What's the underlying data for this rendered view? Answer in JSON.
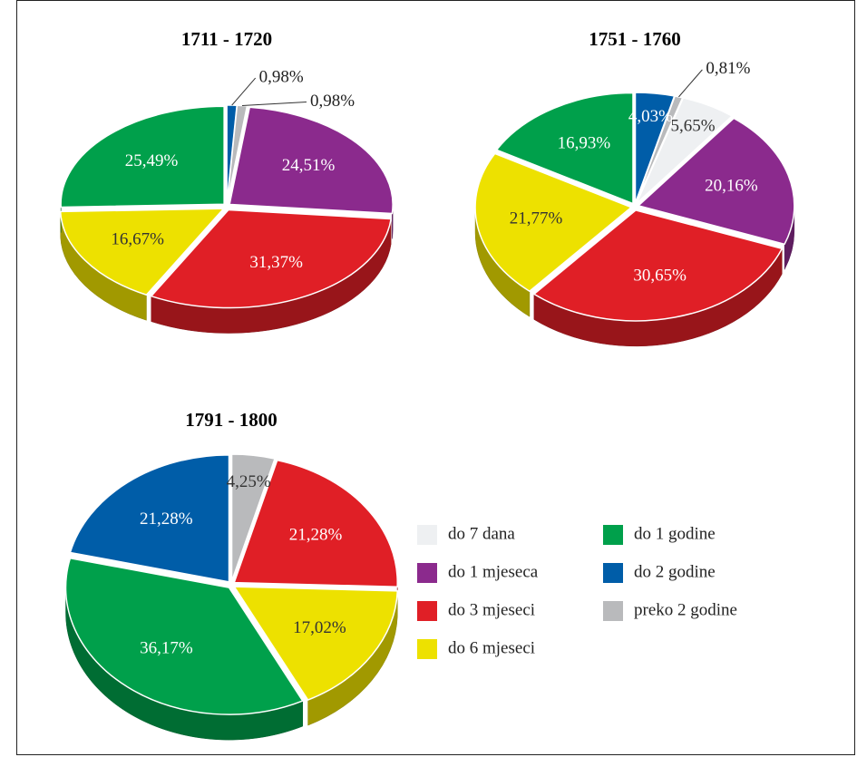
{
  "chart_data": [
    {
      "type": "pie",
      "title": "1711 - 1720",
      "categories": [
        "do 2 godine",
        "preko 2 godine",
        "do 1 mjeseca",
        "do 3 mjeseci",
        "do 6 mjeseci",
        "do 1 godine"
      ],
      "values": [
        0.98,
        0.98,
        24.51,
        31.37,
        16.67,
        25.49
      ],
      "value_labels": [
        "0,98%",
        "0,98%",
        "24,51%",
        "31,37%",
        "16,67%",
        "25,49%"
      ],
      "colors": [
        "#005da8",
        "#b9babc",
        "#8b2a8d",
        "#e01f26",
        "#ede100",
        "#00a04b"
      ]
    },
    {
      "type": "pie",
      "title": "1751 - 1760",
      "categories": [
        "do 2 godine",
        "preko 2 godine",
        "do 7 dana",
        "do 1 mjeseca",
        "do 3 mjeseci",
        "do 6 mjeseci",
        "do 1 godine"
      ],
      "values": [
        4.03,
        0.81,
        5.65,
        20.16,
        30.65,
        21.77,
        16.93
      ],
      "value_labels": [
        "4,03%",
        "0,81%",
        "5,65%",
        "20,16%",
        "30,65%",
        "21,77%",
        "16,93%"
      ],
      "colors": [
        "#005da8",
        "#b9babc",
        "#eef0f2",
        "#8b2a8d",
        "#e01f26",
        "#ede100",
        "#00a04b"
      ]
    },
    {
      "type": "pie",
      "title": "1791 - 1800",
      "categories": [
        "preko 2 godine",
        "do 3 mjeseci",
        "do 6 mjeseci",
        "do 1 godine",
        "do 2 godine"
      ],
      "values": [
        4.25,
        21.28,
        17.02,
        36.17,
        21.28
      ],
      "value_labels": [
        "4,25%",
        "21,28%",
        "17,02%",
        "36,17%",
        "21,28%"
      ],
      "colors": [
        "#b9babc",
        "#e01f26",
        "#ede100",
        "#00a04b",
        "#005da8"
      ]
    }
  ],
  "legend": [
    {
      "label": "do 7 dana",
      "color": "#eef0f2"
    },
    {
      "label": "do 1 godine",
      "color": "#00a04b"
    },
    {
      "label": "do 1 mjeseca",
      "color": "#8b2a8d"
    },
    {
      "label": "do 2 godine",
      "color": "#005da8"
    },
    {
      "label": "do 3 mjeseci",
      "color": "#e01f26"
    },
    {
      "label": "preko 2 godine",
      "color": "#b9babc"
    },
    {
      "label": "do 6 mjeseci",
      "color": "#ede100"
    }
  ]
}
